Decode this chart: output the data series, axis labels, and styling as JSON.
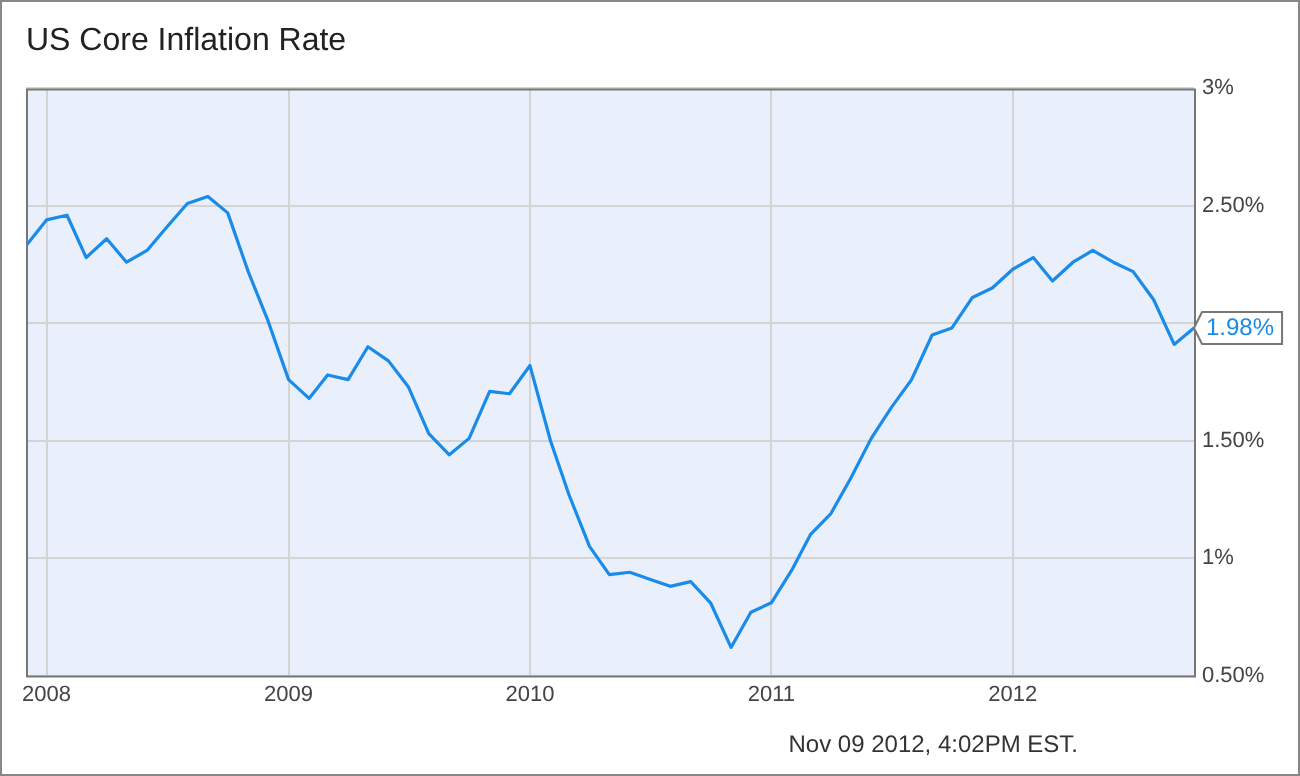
{
  "chart_data": {
    "type": "line",
    "title": "US Core Inflation Rate",
    "x": [
      "2007-12",
      "2008-01",
      "2008-02",
      "2008-03",
      "2008-04",
      "2008-05",
      "2008-06",
      "2008-07",
      "2008-08",
      "2008-09",
      "2008-10",
      "2008-11",
      "2008-12",
      "2009-01",
      "2009-02",
      "2009-03",
      "2009-04",
      "2009-05",
      "2009-06",
      "2009-07",
      "2009-08",
      "2009-09",
      "2009-10",
      "2009-11",
      "2009-12",
      "2010-01",
      "2010-02",
      "2010-03",
      "2010-04",
      "2010-05",
      "2010-06",
      "2010-07",
      "2010-08",
      "2010-09",
      "2010-10",
      "2010-11",
      "2010-12",
      "2011-01",
      "2011-02",
      "2011-03",
      "2011-04",
      "2011-05",
      "2011-06",
      "2011-07",
      "2011-08",
      "2011-09",
      "2011-10",
      "2011-11",
      "2011-12",
      "2012-01",
      "2012-02",
      "2012-03",
      "2012-04",
      "2012-05",
      "2012-06",
      "2012-07",
      "2012-08",
      "2012-09",
      "2012-10"
    ],
    "series": [
      {
        "color": "#1a8be8",
        "values": [
          2.33,
          2.44,
          2.46,
          2.28,
          2.36,
          2.26,
          2.31,
          2.41,
          2.51,
          2.54,
          2.47,
          2.22,
          2.01,
          1.76,
          1.68,
          1.78,
          1.76,
          1.9,
          1.84,
          1.73,
          1.53,
          1.44,
          1.51,
          1.71,
          1.7,
          1.82,
          1.5,
          1.27,
          1.05,
          0.93,
          0.94,
          0.91,
          0.88,
          0.9,
          0.81,
          0.62,
          0.77,
          0.81,
          0.95,
          1.1,
          1.19,
          1.34,
          1.51,
          1.64,
          1.76,
          1.95,
          1.98,
          2.11,
          2.15,
          2.23,
          2.28,
          2.18,
          2.26,
          2.31,
          2.26,
          2.22,
          2.1,
          1.91,
          1.98
        ]
      }
    ],
    "xlim": [
      "2007-12",
      "2012-10"
    ],
    "xticks": [
      "2008",
      "2009",
      "2010",
      "2011",
      "2012"
    ],
    "ylim": [
      0.5,
      3
    ],
    "yticks": [
      {
        "value": 0.5,
        "label": "0.50%"
      },
      {
        "value": 1,
        "label": "1%"
      },
      {
        "value": 1.5,
        "label": "1.50%"
      },
      {
        "value": 2,
        "label": null
      },
      {
        "value": 2.5,
        "label": "2.50%"
      },
      {
        "value": 3,
        "label": "3%"
      }
    ],
    "grid": true,
    "legend": false,
    "marker": "none",
    "line_style": "solid",
    "annotations": [
      {
        "text": "1.98%",
        "x": "2012-10",
        "y": 1.98
      },
      "Nov 09 2012, 4:02PM EST."
    ]
  }
}
